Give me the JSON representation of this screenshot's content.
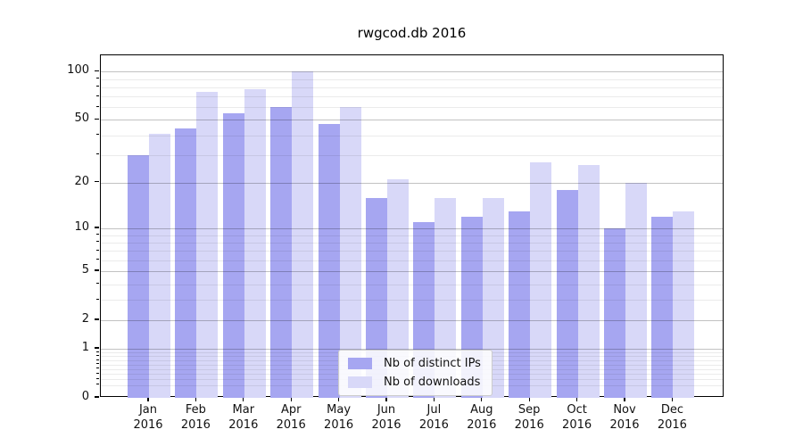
{
  "title": "rwgcod.db 2016",
  "chart_data": {
    "type": "bar",
    "scale": "log10(1+x)",
    "grid": true,
    "legend_position": "lower-center",
    "categories": [
      "Jan",
      "Feb",
      "Mar",
      "Apr",
      "May",
      "Jun",
      "Jul",
      "Aug",
      "Sep",
      "Oct",
      "Nov",
      "Dec"
    ],
    "category_year": "2016",
    "series": [
      {
        "name": "Nb of distinct IPs",
        "color": "#a6a6f1",
        "values": [
          30,
          44,
          55,
          60,
          47,
          16,
          11,
          12,
          13,
          18,
          10,
          12
        ]
      },
      {
        "name": "Nb of downloads",
        "color": "#d8d8f8",
        "values": [
          41,
          75,
          78,
          100,
          60,
          21,
          16,
          16,
          27,
          26,
          20,
          13
        ]
      }
    ],
    "ylim": [
      0,
      126
    ],
    "yticks_major": [
      0,
      1,
      2,
      5,
      10,
      20,
      50,
      100
    ],
    "yticks_minor": [
      0.2,
      0.3,
      0.4,
      0.5,
      0.6,
      0.7,
      0.8,
      0.9,
      3,
      4,
      6,
      7,
      8,
      9,
      30,
      40,
      60,
      70,
      80,
      90
    ],
    "xlabel": "",
    "ylabel": ""
  }
}
